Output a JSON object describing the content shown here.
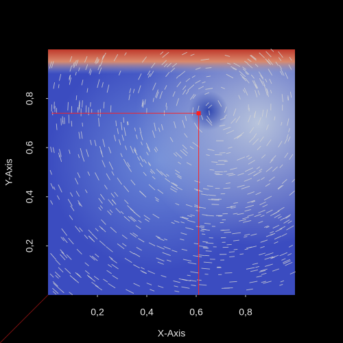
{
  "chart_data": {
    "type": "vector-field",
    "x_label": "X-Axis",
    "y_label": "Y-Axis",
    "x": [
      0.61
    ],
    "values": [
      0.74
    ],
    "color": "#ff2020",
    "xlim": [
      0,
      1
    ],
    "ylim": [
      0,
      1
    ],
    "xticks": [
      {
        "value": 0.2,
        "label": "0,2"
      },
      {
        "value": 0.4,
        "label": "0,4"
      },
      {
        "value": 0.6,
        "label": "0,6"
      },
      {
        "value": 0.8,
        "label": "0,8"
      }
    ],
    "yticks": [
      {
        "value": 0.2,
        "label": "0,2"
      },
      {
        "value": 0.4,
        "label": "0,4"
      },
      {
        "value": 0.6,
        "label": "0,6"
      },
      {
        "value": 0.8,
        "label": "0,8"
      }
    ]
  }
}
